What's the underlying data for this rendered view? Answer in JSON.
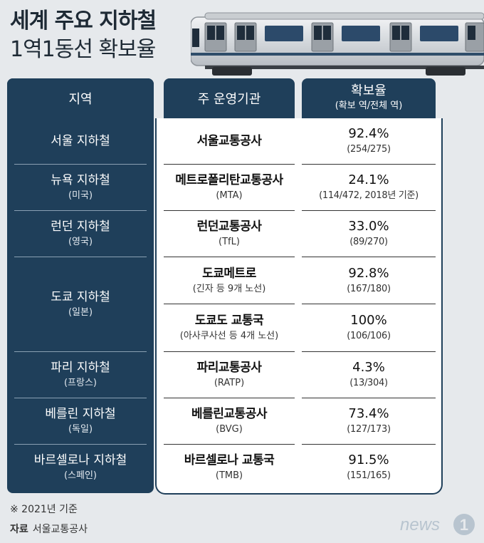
{
  "title": {
    "line1": "세계 주요 지하철",
    "line2": "1역1동선 확보율"
  },
  "headers": {
    "region": "지역",
    "operator": "주 운영기관",
    "rate": "확보율",
    "rate_sub": "(확보 역/전체 역)"
  },
  "rows": [
    {
      "region": "서울 지하철",
      "country": "",
      "operators": [
        {
          "name": "서울교통공사",
          "sub": "",
          "rate": "92.4%",
          "detail": "(254/275)"
        }
      ]
    },
    {
      "region": "뉴욕 지하철",
      "country": "(미국)",
      "operators": [
        {
          "name": "메트로폴리탄교통공사",
          "sub": "(MTA)",
          "rate": "24.1%",
          "detail": "(114/472, 2018년 기준)"
        }
      ]
    },
    {
      "region": "런던 지하철",
      "country": "(영국)",
      "operators": [
        {
          "name": "런던교통공사",
          "sub": "(TfL)",
          "rate": "33.0%",
          "detail": "(89/270)"
        }
      ]
    },
    {
      "region": "도쿄 지하철",
      "country": "(일본)",
      "operators": [
        {
          "name": "도쿄메트로",
          "sub": "(긴자 등 9개 노선)",
          "rate": "92.8%",
          "detail": "(167/180)"
        },
        {
          "name": "도쿄도 교통국",
          "sub": "(아사쿠사선 등 4개 노선)",
          "rate": "100%",
          "detail": "(106/106)"
        }
      ]
    },
    {
      "region": "파리 지하철",
      "country": "(프랑스)",
      "operators": [
        {
          "name": "파리교통공사",
          "sub": "(RATP)",
          "rate": "4.3%",
          "detail": "(13/304)"
        }
      ]
    },
    {
      "region": "베를린 지하철",
      "country": "(독일)",
      "operators": [
        {
          "name": "베를린교통공사",
          "sub": "(BVG)",
          "rate": "73.4%",
          "detail": "(127/173)"
        }
      ]
    },
    {
      "region": "바르셀로나 지하철",
      "country": "(스페인)",
      "operators": [
        {
          "name": "바르셀로나 교통국",
          "sub": "(TMB)",
          "rate": "91.5%",
          "detail": "(151/165)"
        }
      ]
    }
  ],
  "footer": {
    "note": "※ 2021년 기준",
    "source_label": "자료",
    "source": "서울교통공사"
  },
  "logo": {
    "text": "news",
    "mark": "1"
  },
  "colors": {
    "navy": "#1f3f5a",
    "background": "#e6e9ec"
  }
}
